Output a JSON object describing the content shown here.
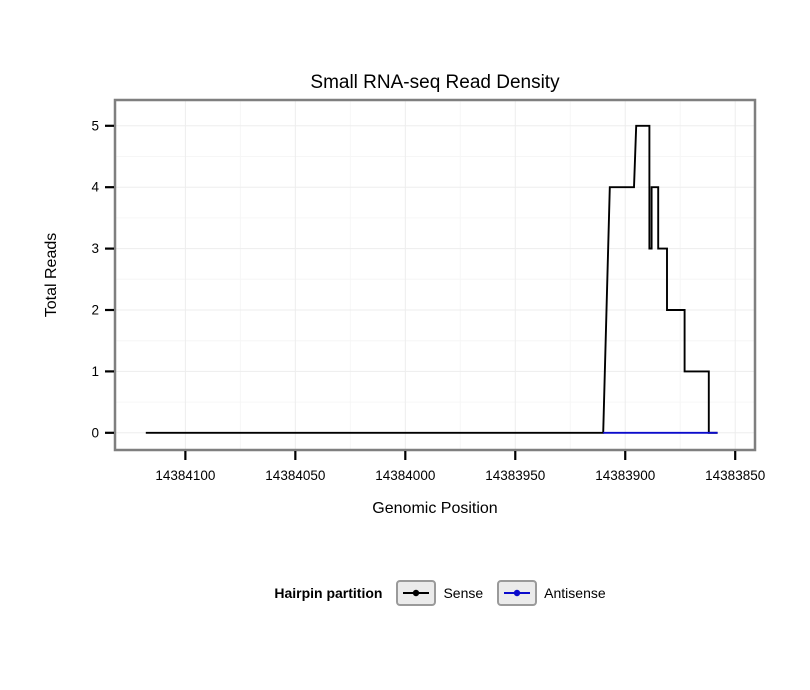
{
  "chart_data": {
    "type": "line",
    "title": "Small RNA-seq Read Density",
    "xlabel": "Genomic Position",
    "ylabel": "Total Reads",
    "x_ticks": [
      14384100,
      14384050,
      14384000,
      14383950,
      14383900,
      14383850
    ],
    "x_tick_labels": [
      "14384100",
      "14384050",
      "14384000",
      "14383950",
      "14383900",
      "14383850"
    ],
    "y_ticks": [
      0,
      1,
      2,
      3,
      4,
      5
    ],
    "xlim": [
      14384132,
      14383841
    ],
    "x_reversed": true,
    "ylim": [
      0,
      5
    ],
    "grid": true,
    "legend": {
      "title": "Hairpin partition",
      "position": "bottom",
      "entries": [
        {
          "label": "Sense",
          "color": "#000000"
        },
        {
          "label": "Antisense",
          "color": "#0b0bcc"
        }
      ]
    },
    "series": [
      {
        "name": "Sense",
        "color": "#000000",
        "points": [
          [
            14384118,
            0
          ],
          [
            14383910,
            0
          ],
          [
            14383907,
            4
          ],
          [
            14383896,
            4
          ],
          [
            14383895,
            5
          ],
          [
            14383889,
            5
          ],
          [
            14383889,
            3
          ],
          [
            14383888,
            3
          ],
          [
            14383888,
            4
          ],
          [
            14383885,
            4
          ],
          [
            14383885,
            3
          ],
          [
            14383881,
            3
          ],
          [
            14383881,
            2
          ],
          [
            14383873,
            2
          ],
          [
            14383873,
            1
          ],
          [
            14383862,
            1
          ],
          [
            14383862,
            0
          ],
          [
            14383858,
            0
          ]
        ]
      },
      {
        "name": "Antisense",
        "color": "#0b0bcc",
        "points": [
          [
            14383910,
            0
          ],
          [
            14383858,
            0
          ]
        ]
      }
    ],
    "panel": {
      "border_color": "#7f7f7f",
      "background": "#ffffff",
      "major_grid_color": "#ededed",
      "minor_grid_color": "#f6f6f6"
    }
  }
}
